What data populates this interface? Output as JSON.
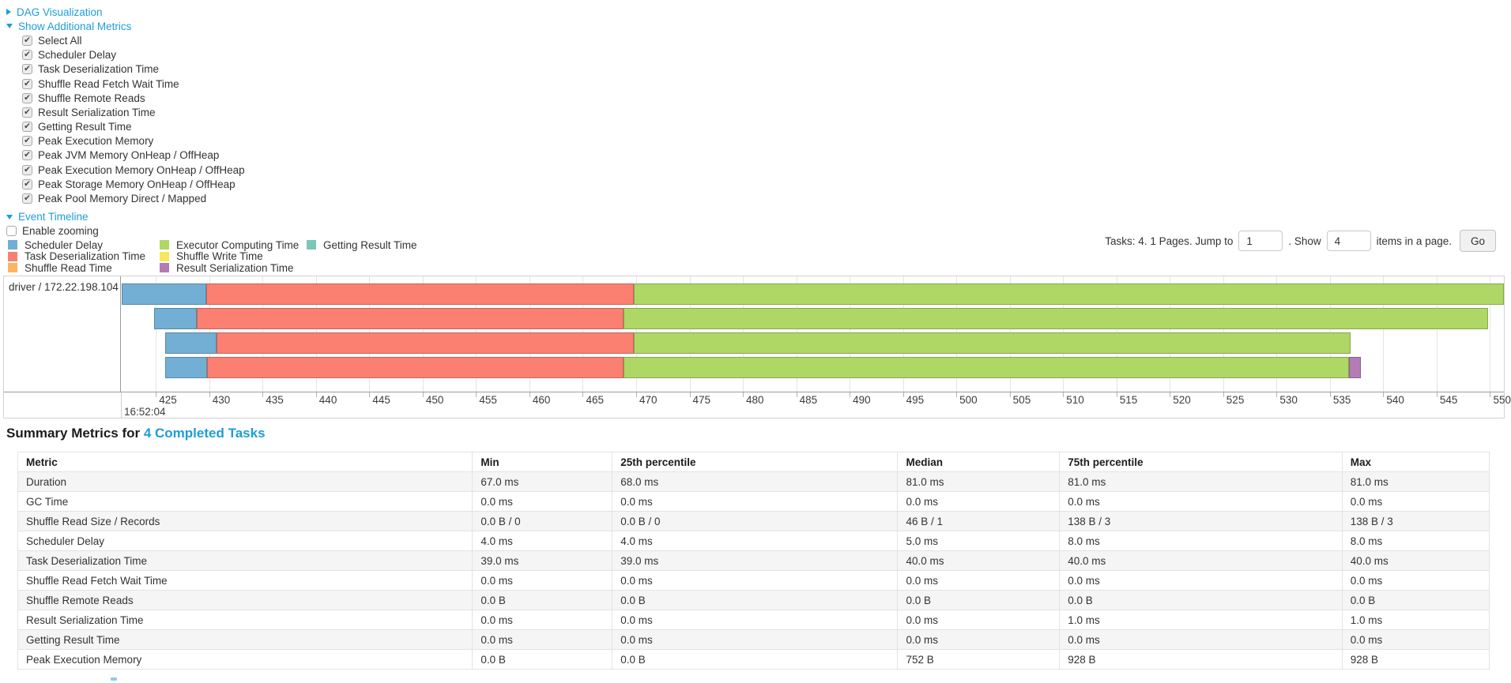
{
  "accent": {
    "link_color": "#1e9cd9"
  },
  "dag": {
    "label": "DAG Visualization",
    "state": "collapsed"
  },
  "metrics_panel": {
    "label": "Show Additional Metrics",
    "state": "expanded",
    "items": [
      {
        "label": "Select All",
        "checked": true
      },
      {
        "label": "Scheduler Delay",
        "checked": true
      },
      {
        "label": "Task Deserialization Time",
        "checked": true
      },
      {
        "label": "Shuffle Read Fetch Wait Time",
        "checked": true
      },
      {
        "label": "Shuffle Remote Reads",
        "checked": true
      },
      {
        "label": "Result Serialization Time",
        "checked": true
      },
      {
        "label": "Getting Result Time",
        "checked": true
      },
      {
        "label": "Peak Execution Memory",
        "checked": true
      },
      {
        "label": "Peak JVM Memory OnHeap / OffHeap",
        "checked": true
      },
      {
        "label": "Peak Execution Memory OnHeap / OffHeap",
        "checked": true
      },
      {
        "label": "Peak Storage Memory OnHeap / OffHeap",
        "checked": true
      },
      {
        "label": "Peak Pool Memory Direct / Mapped",
        "checked": true
      }
    ]
  },
  "event_timeline": {
    "label": "Event Timeline",
    "state": "expanded",
    "enable_zooming_label": "Enable zooming",
    "enable_zooming_checked": false,
    "legend_columns": [
      [
        {
          "key": "scheduler-delay",
          "label": "Scheduler Delay",
          "color": "#73AFD4"
        },
        {
          "key": "task-deserialization",
          "label": "Task Deserialization Time",
          "color": "#FB8072"
        },
        {
          "key": "shuffle-read",
          "label": "Shuffle Read Time",
          "color": "#FDB462"
        }
      ],
      [
        {
          "key": "executor-computing",
          "label": "Executor Computing Time",
          "color": "#AED765"
        },
        {
          "key": "shuffle-write",
          "label": "Shuffle Write Time",
          "color": "#F6E858"
        },
        {
          "key": "result-serialization",
          "label": "Result Serialization Time",
          "color": "#B37CB5"
        }
      ],
      [
        {
          "key": "getting-result",
          "label": "Getting Result Time",
          "color": "#79C7B7"
        }
      ]
    ]
  },
  "pagination": {
    "prefix": "Tasks: 4. 1 Pages. Jump to",
    "jump_value": "1",
    "mid": ". Show",
    "show_value": "4",
    "suffix": "items in a page.",
    "go_label": "Go"
  },
  "chart_data": {
    "type": "timeline",
    "title": "Event Timeline",
    "group_label": "driver / 172.22.198.104",
    "x_axis": {
      "unit": "milliseconds within second 16:52:04",
      "domain_ms": [
        421.8,
        551.3
      ],
      "tick_step_ms": 5,
      "ticks_ms": [
        425,
        430,
        435,
        440,
        445,
        450,
        455,
        460,
        465,
        470,
        475,
        480,
        485,
        490,
        495,
        500,
        505,
        510,
        515,
        520,
        525,
        530,
        535,
        540,
        545,
        550
      ],
      "major_label": "16:52:04"
    },
    "tasks": [
      {
        "segments": [
          {
            "metric": "scheduler-delay",
            "from": 421.8,
            "to": 429.7
          },
          {
            "metric": "task-deserialization",
            "from": 429.7,
            "to": 469.8
          },
          {
            "metric": "executor-computing",
            "from": 469.8,
            "to": 551.3
          }
        ]
      },
      {
        "segments": [
          {
            "metric": "scheduler-delay",
            "from": 424.8,
            "to": 428.8
          },
          {
            "metric": "task-deserialization",
            "from": 428.8,
            "to": 468.8
          },
          {
            "metric": "executor-computing",
            "from": 468.8,
            "to": 549.8
          }
        ]
      },
      {
        "segments": [
          {
            "metric": "scheduler-delay",
            "from": 425.9,
            "to": 430.7
          },
          {
            "metric": "task-deserialization",
            "from": 430.7,
            "to": 469.8
          },
          {
            "metric": "executor-computing",
            "from": 469.8,
            "to": 536.9
          }
        ]
      },
      {
        "segments": [
          {
            "metric": "scheduler-delay",
            "from": 425.9,
            "to": 429.8
          },
          {
            "metric": "task-deserialization",
            "from": 429.8,
            "to": 468.8
          },
          {
            "metric": "executor-computing",
            "from": 468.8,
            "to": 536.8
          },
          {
            "metric": "result-serialization",
            "from": 536.8,
            "to": 537.9
          }
        ]
      }
    ]
  },
  "summary": {
    "heading_prefix": "Summary Metrics for ",
    "heading_link": "4 Completed Tasks",
    "table": {
      "headers": [
        "Metric",
        "Min",
        "25th percentile",
        "Median",
        "75th percentile",
        "Max"
      ],
      "col_widths_pct": [
        30.9,
        9.5,
        19.4,
        11.0,
        19.2,
        10.0
      ],
      "rows": [
        [
          "Duration",
          "67.0 ms",
          "68.0 ms",
          "81.0 ms",
          "81.0 ms",
          "81.0 ms"
        ],
        [
          "GC Time",
          "0.0 ms",
          "0.0 ms",
          "0.0 ms",
          "0.0 ms",
          "0.0 ms"
        ],
        [
          "Shuffle Read Size / Records",
          "0.0 B / 0",
          "0.0 B / 0",
          "46 B / 1",
          "138 B / 3",
          "138 B / 3"
        ],
        [
          "Scheduler Delay",
          "4.0 ms",
          "4.0 ms",
          "5.0 ms",
          "8.0 ms",
          "8.0 ms"
        ],
        [
          "Task Deserialization Time",
          "39.0 ms",
          "39.0 ms",
          "40.0 ms",
          "40.0 ms",
          "40.0 ms"
        ],
        [
          "Shuffle Read Fetch Wait Time",
          "0.0 ms",
          "0.0 ms",
          "0.0 ms",
          "0.0 ms",
          "0.0 ms"
        ],
        [
          "Shuffle Remote Reads",
          "0.0 B",
          "0.0 B",
          "0.0 B",
          "0.0 B",
          "0.0 B"
        ],
        [
          "Result Serialization Time",
          "0.0 ms",
          "0.0 ms",
          "0.0 ms",
          "1.0 ms",
          "1.0 ms"
        ],
        [
          "Getting Result Time",
          "0.0 ms",
          "0.0 ms",
          "0.0 ms",
          "0.0 ms",
          "0.0 ms"
        ],
        [
          "Peak Execution Memory",
          "0.0 B",
          "0.0 B",
          "752 B",
          "928 B",
          "928 B"
        ]
      ]
    }
  }
}
